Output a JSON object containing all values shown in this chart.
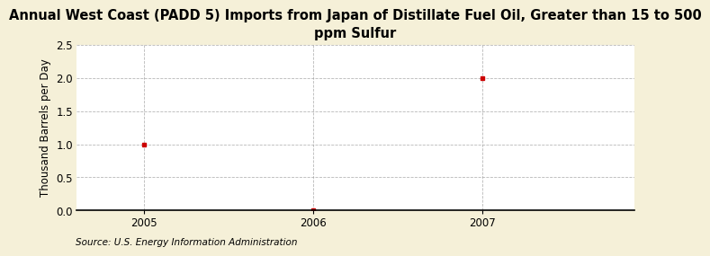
{
  "title": "Annual West Coast (PADD 5) Imports from Japan of Distillate Fuel Oil, Greater than 15 to 500\nppm Sulfur",
  "ylabel": "Thousand Barrels per Day",
  "source": "Source: U.S. Energy Information Administration",
  "x_values": [
    2005,
    2006,
    2007
  ],
  "y_values": [
    1.0,
    0.0,
    2.0
  ],
  "xlim": [
    2004.6,
    2007.9
  ],
  "ylim": [
    0.0,
    2.5
  ],
  "yticks": [
    0.0,
    0.5,
    1.0,
    1.5,
    2.0,
    2.5
  ],
  "xticks": [
    2005,
    2006,
    2007
  ],
  "marker_color": "#cc0000",
  "marker_size": 3.5,
  "figure_bg_color": "#f5f0d8",
  "plot_bg_color": "#ffffff",
  "grid_color": "#999999",
  "title_fontsize": 10.5,
  "ylabel_fontsize": 8.5,
  "tick_fontsize": 8.5,
  "source_fontsize": 7.5
}
